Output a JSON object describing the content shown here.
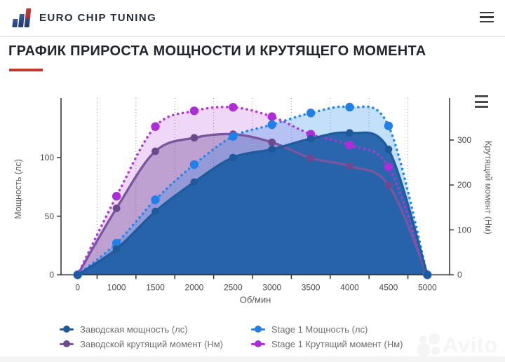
{
  "header": {
    "brand": "EURO CHIP TUNING",
    "icons": {
      "logo": "bars-logo-icon",
      "menu": "hamburger-icon",
      "chart_menu": "hamburger-icon"
    },
    "logo_colors": {
      "navy": "#2d4d80",
      "red": "#bf3b31"
    }
  },
  "title": {
    "text": "ГРАФИК ПРИРОСТА МОЩНОСТИ И КРУТЯЩЕГО МОМЕНТА",
    "accent_color": "#c0392b"
  },
  "chart_data": {
    "type": "line",
    "x_categories": [
      "0",
      "1000",
      "1500",
      "2000",
      "2500",
      "3000",
      "3500",
      "4000",
      "4500",
      "5000"
    ],
    "xlabel": "Об/мин",
    "y_left": {
      "label": "Мощность (лс)",
      "ticks": [
        0,
        50,
        100
      ],
      "range": [
        0,
        151
      ]
    },
    "y_right": {
      "label": "Крутящий момент (Нм)",
      "ticks": [
        0,
        100,
        200,
        300
      ],
      "range": [
        0,
        393
      ]
    },
    "grid": "vertical-dotted",
    "legend_position": "bottom",
    "series": [
      {
        "name": "Заводская мощность (лс)",
        "axis": "left",
        "style": "solid",
        "color": "#1e5c9e",
        "marker_color": "#1d5a9c",
        "fill": "rgba(31,95,167,0.93)",
        "values": [
          0,
          22,
          54,
          79,
          100,
          107,
          116,
          121,
          107,
          0
        ]
      },
      {
        "name": "Stage 1 Мощность (лс)",
        "axis": "left",
        "style": "dotted",
        "color": "#2387ee",
        "marker_color": "#2080e8",
        "fill": "rgba(35,135,238,0.27)",
        "values": [
          0,
          27,
          64,
          94,
          118,
          128,
          138,
          143,
          127,
          0
        ]
      },
      {
        "name": "Заводской крутящий момент (Нм)",
        "axis": "right",
        "style": "solid",
        "color": "#7b569e",
        "marker_color": "#6d4a8f",
        "fill": "rgba(123,86,158,0.42)",
        "values": [
          0,
          148,
          275,
          305,
          313,
          295,
          260,
          242,
          200,
          0
        ]
      },
      {
        "name": "Stage 1 Крутящий момент (Нм)",
        "axis": "right",
        "style": "dotted",
        "color": "#b136d6",
        "marker_color": "#ab2ed8",
        "fill": "rgba(177,54,214,0.20)",
        "values": [
          0,
          175,
          330,
          365,
          373,
          352,
          313,
          289,
          240,
          0
        ]
      }
    ],
    "area_draw_order": [
      3,
      2,
      1,
      0
    ],
    "line_draw_order": [
      2,
      3,
      1,
      0
    ]
  },
  "watermark": {
    "text": "Avito"
  }
}
